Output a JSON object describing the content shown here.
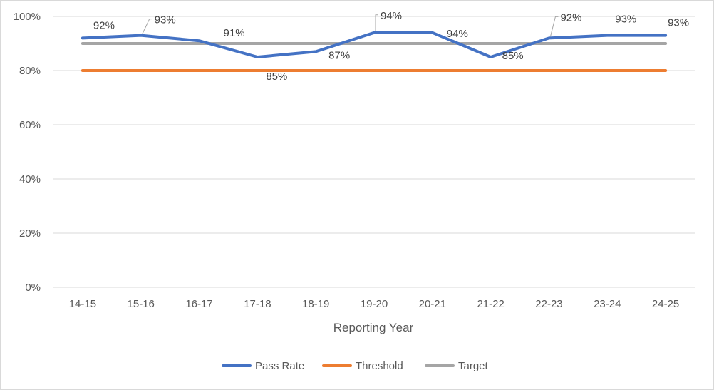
{
  "chart_data": {
    "type": "line",
    "title": "",
    "xlabel": "Reporting Year",
    "ylabel": "",
    "categories": [
      "14-15",
      "15-16",
      "16-17",
      "17-18",
      "18-19",
      "19-20",
      "20-21",
      "21-22",
      "22-23",
      "23-24",
      "24-25"
    ],
    "ylim": [
      0,
      1
    ],
    "yticks": [
      0,
      0.2,
      0.4,
      0.6,
      0.8,
      1.0
    ],
    "ytick_labels": [
      "0%",
      "20%",
      "40%",
      "60%",
      "80%",
      "100%"
    ],
    "grid": true,
    "legend": "bottom",
    "series": [
      {
        "name": "Pass Rate",
        "color": "#4472C4",
        "values": [
          0.92,
          0.93,
          0.91,
          0.85,
          0.87,
          0.94,
          0.94,
          0.85,
          0.92,
          0.93,
          0.93
        ],
        "labels": [
          "92%",
          "93%",
          "91%",
          "85%",
          "87%",
          "94%",
          "94%",
          "85%",
          "92%",
          "93%",
          "93%"
        ]
      },
      {
        "name": "Threshold",
        "color": "#ED7D31",
        "values": [
          0.8,
          0.8,
          0.8,
          0.8,
          0.8,
          0.8,
          0.8,
          0.8,
          0.8,
          0.8,
          0.8
        ]
      },
      {
        "name": "Target",
        "color": "#A5A5A5",
        "values": [
          0.9,
          0.9,
          0.9,
          0.9,
          0.9,
          0.9,
          0.9,
          0.9,
          0.9,
          0.9,
          0.9
        ]
      }
    ]
  }
}
